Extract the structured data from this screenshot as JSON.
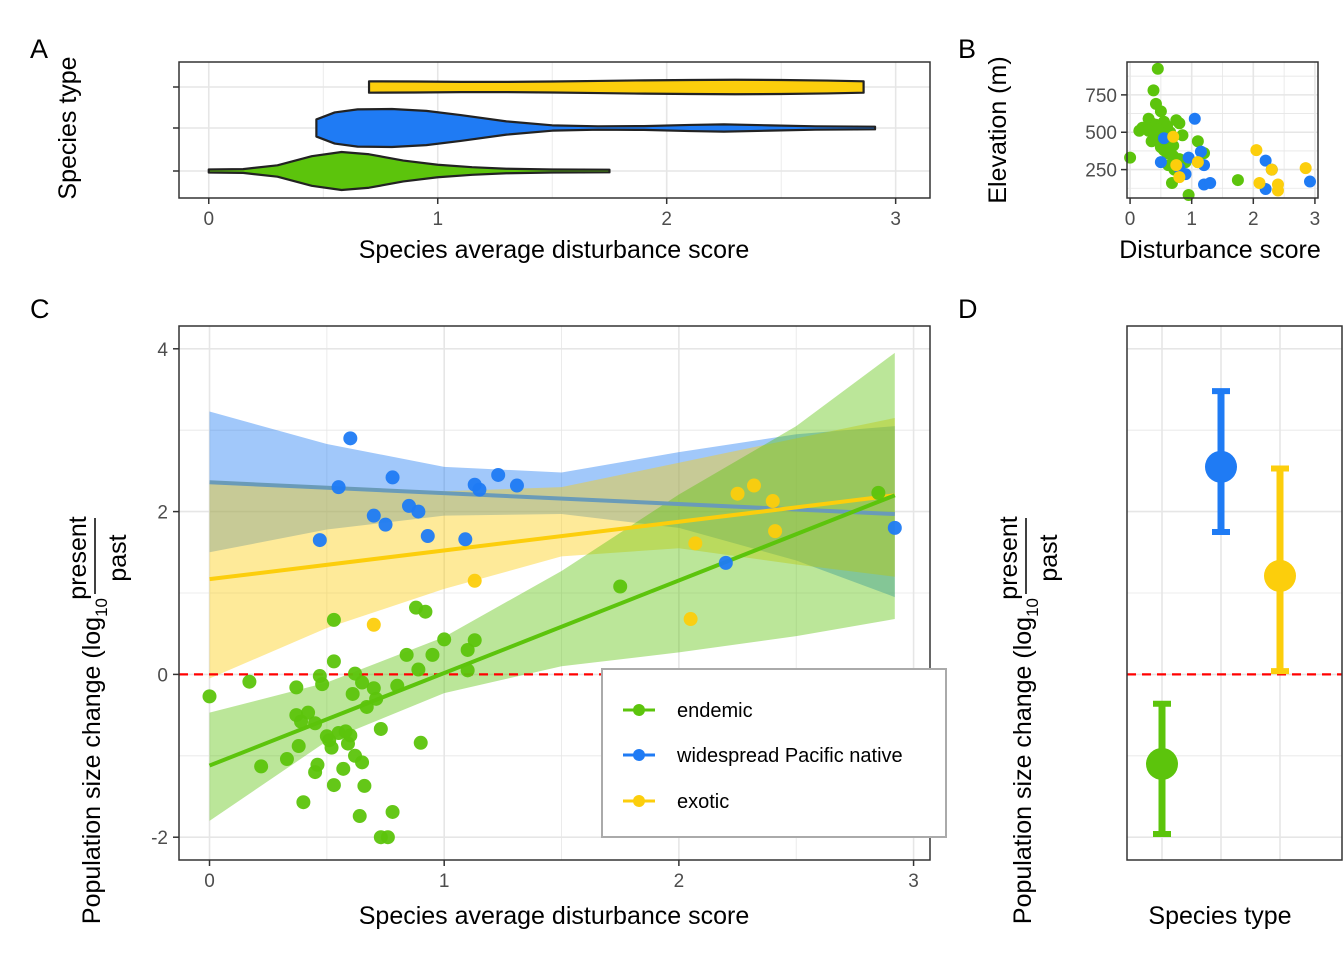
{
  "colors": {
    "endemic": "#5cc40c",
    "native": "#1f7bf4",
    "exotic": "#fcce0c",
    "reference_line": "#ff0000"
  },
  "panels": {
    "A": {
      "label": "A",
      "xlabel": "Species average disturbance score",
      "ylabel": "Species type",
      "xticks": [
        "0",
        "1",
        "2",
        "3"
      ]
    },
    "B": {
      "label": "B",
      "xlabel": "Disturbance score",
      "ylabel": "Elevation (m)",
      "xticks": [
        "0",
        "1",
        "2",
        "3"
      ],
      "yticks": [
        "250",
        "500",
        "750"
      ]
    },
    "C": {
      "label": "C",
      "xlabel": "Species average disturbance score",
      "ylabel_main": "Population size change (log",
      "ylabel_sub": "10",
      "ylabel_num": "present",
      "ylabel_den": "past",
      "xticks": [
        "0",
        "1",
        "2",
        "3"
      ],
      "yticks": [
        "-2",
        "0",
        "2",
        "4"
      ]
    },
    "D": {
      "label": "D",
      "xlabel": "Species type",
      "ylabel_main": "Population size change (log",
      "ylabel_sub": "10",
      "ylabel_num": "present",
      "ylabel_den": "past"
    }
  },
  "legend": [
    {
      "label": "endemic",
      "color": "#5cc40c"
    },
    {
      "label": "widespread Pacific native",
      "color": "#1f7bf4"
    },
    {
      "label": "exotic",
      "color": "#fcce0c"
    }
  ],
  "chart_data": [
    {
      "panel": "A",
      "type": "violin",
      "x_range": [
        -0.13,
        3.15
      ],
      "series": [
        {
          "name": "endemic",
          "color": "#5cc40c",
          "x_min": 0,
          "x_max": 1.75,
          "profile": [
            [
              0,
              0.08
            ],
            [
              0.15,
              0.1
            ],
            [
              0.3,
              0.3
            ],
            [
              0.45,
              0.78
            ],
            [
              0.58,
              1.0
            ],
            [
              0.7,
              0.88
            ],
            [
              0.85,
              0.55
            ],
            [
              1.0,
              0.33
            ],
            [
              1.15,
              0.2
            ],
            [
              1.3,
              0.12
            ],
            [
              1.5,
              0.08
            ],
            [
              1.75,
              0.07
            ]
          ]
        },
        {
          "name": "widespread Pacific native",
          "color": "#1f7bf4",
          "x_min": 0.47,
          "x_max": 2.91,
          "profile": [
            [
              0.47,
              0.45
            ],
            [
              0.55,
              0.82
            ],
            [
              0.65,
              0.98
            ],
            [
              0.8,
              1.0
            ],
            [
              0.95,
              0.9
            ],
            [
              1.1,
              0.68
            ],
            [
              1.3,
              0.35
            ],
            [
              1.5,
              0.14
            ],
            [
              1.7,
              0.09
            ],
            [
              1.9,
              0.1
            ],
            [
              2.1,
              0.16
            ],
            [
              2.25,
              0.19
            ],
            [
              2.45,
              0.14
            ],
            [
              2.65,
              0.09
            ],
            [
              2.91,
              0.07
            ]
          ]
        },
        {
          "name": "exotic",
          "color": "#fcce0c",
          "x_min": 0.7,
          "x_max": 2.86,
          "profile": [
            [
              0.7,
              0.3
            ],
            [
              0.9,
              0.29
            ],
            [
              1.1,
              0.27
            ],
            [
              1.3,
              0.27
            ],
            [
              1.5,
              0.29
            ],
            [
              1.7,
              0.32
            ],
            [
              1.9,
              0.35
            ],
            [
              2.1,
              0.37
            ],
            [
              2.3,
              0.38
            ],
            [
              2.5,
              0.37
            ],
            [
              2.7,
              0.34
            ],
            [
              2.86,
              0.3
            ]
          ]
        }
      ]
    },
    {
      "panel": "B",
      "type": "scatter",
      "x_range": [
        -0.05,
        3.05
      ],
      "y_range": [
        60,
        970
      ],
      "series": [
        {
          "name": "endemic",
          "color": "#5cc40c",
          "points": [
            [
              0.45,
              925
            ],
            [
              0.38,
              780
            ],
            [
              0.42,
              690
            ],
            [
              0.5,
              640
            ],
            [
              0.3,
              590
            ],
            [
              0.35,
              560
            ],
            [
              0.42,
              550
            ],
            [
              0.55,
              570
            ],
            [
              0.6,
              540
            ],
            [
              0.75,
              580
            ],
            [
              0.8,
              560
            ],
            [
              0.2,
              530
            ],
            [
              0.15,
              510
            ],
            [
              0.3,
              510
            ],
            [
              0.4,
              480
            ],
            [
              0.45,
              460
            ],
            [
              0.5,
              450
            ],
            [
              0.55,
              470
            ],
            [
              0.6,
              440
            ],
            [
              0.35,
              440
            ],
            [
              0.65,
              420
            ],
            [
              0.7,
              410
            ],
            [
              0.5,
              400
            ],
            [
              0.55,
              380
            ],
            [
              0.6,
              360
            ],
            [
              0.7,
              340
            ],
            [
              0.8,
              320
            ],
            [
              0.9,
              300
            ],
            [
              0.62,
              280
            ],
            [
              0.72,
              250
            ],
            [
              0.68,
              160
            ],
            [
              0.95,
              80
            ],
            [
              1.1,
              440
            ],
            [
              1.1,
              300
            ],
            [
              1.2,
              360
            ],
            [
              0.0,
              330
            ],
            [
              0.85,
              480
            ],
            [
              1.75,
              180
            ],
            [
              0.45,
              520
            ],
            [
              0.65,
              500
            ]
          ]
        },
        {
          "name": "widespread Pacific native",
          "color": "#1f7bf4",
          "points": [
            [
              1.05,
              590
            ],
            [
              1.15,
              370
            ],
            [
              0.95,
              330
            ],
            [
              0.8,
              260
            ],
            [
              1.2,
              280
            ],
            [
              0.9,
              220
            ],
            [
              0.5,
              300
            ],
            [
              2.2,
              310
            ],
            [
              2.3,
              250
            ],
            [
              2.2,
              120
            ],
            [
              1.2,
              150
            ],
            [
              1.3,
              160
            ],
            [
              2.92,
              170
            ],
            [
              0.55,
              460
            ]
          ]
        },
        {
          "name": "exotic",
          "color": "#fcce0c",
          "points": [
            [
              2.05,
              380
            ],
            [
              1.1,
              300
            ],
            [
              0.75,
              280
            ],
            [
              0.8,
              200
            ],
            [
              2.3,
              250
            ],
            [
              2.4,
              150
            ],
            [
              2.4,
              110
            ],
            [
              2.85,
              260
            ],
            [
              2.1,
              160
            ],
            [
              0.7,
              470
            ]
          ]
        }
      ]
    },
    {
      "panel": "C",
      "type": "scatter",
      "x_range": [
        -0.13,
        3.07
      ],
      "y_range": [
        -2.28,
        4.28
      ],
      "reference_line_y": 0,
      "series": [
        {
          "name": "endemic",
          "color": "#5cc40c",
          "points": [
            [
              0,
              -0.27
            ],
            [
              0.17,
              -0.09
            ],
            [
              0.22,
              -1.13
            ],
            [
              0.33,
              -1.04
            ],
            [
              0.37,
              -0.16
            ],
            [
              0.37,
              -0.5
            ],
            [
              0.38,
              -0.88
            ],
            [
              0.39,
              -0.58
            ],
            [
              0.4,
              -1.57
            ],
            [
              0.42,
              -0.47
            ],
            [
              0.45,
              -0.6
            ],
            [
              0.45,
              -1.2
            ],
            [
              0.46,
              -1.11
            ],
            [
              0.47,
              -0.02
            ],
            [
              0.48,
              -0.12
            ],
            [
              0.5,
              -0.76
            ],
            [
              0.51,
              -0.81
            ],
            [
              0.52,
              -0.9
            ],
            [
              0.53,
              0.16
            ],
            [
              0.53,
              -1.36
            ],
            [
              0.55,
              -0.72
            ],
            [
              0.57,
              -1.16
            ],
            [
              0.58,
              -0.7
            ],
            [
              0.59,
              -0.85
            ],
            [
              0.6,
              -0.75
            ],
            [
              0.61,
              -0.24
            ],
            [
              0.62,
              0.01
            ],
            [
              0.62,
              -1.0
            ],
            [
              0.64,
              -1.74
            ],
            [
              0.65,
              -1.08
            ],
            [
              0.65,
              -0.1
            ],
            [
              0.66,
              -1.37
            ],
            [
              0.67,
              -0.4
            ],
            [
              0.7,
              -0.17
            ],
            [
              0.71,
              -0.3
            ],
            [
              0.73,
              -0.67
            ],
            [
              0.73,
              -2.0
            ],
            [
              0.76,
              -2.0
            ],
            [
              0.78,
              -1.69
            ],
            [
              0.8,
              -0.14
            ],
            [
              0.84,
              0.24
            ],
            [
              0.89,
              0.06
            ],
            [
              0.9,
              -0.84
            ],
            [
              0.95,
              0.24
            ],
            [
              1.0,
              0.43
            ],
            [
              1.1,
              0.3
            ],
            [
              1.1,
              0.05
            ],
            [
              1.13,
              0.42
            ],
            [
              0.53,
              0.67
            ],
            [
              0.88,
              0.82
            ],
            [
              0.92,
              0.77
            ],
            [
              1.75,
              1.08
            ],
            [
              2.85,
              2.23
            ]
          ]
        },
        {
          "name": "widespread Pacific native",
          "color": "#1f7bf4",
          "points": [
            [
              0.6,
              2.9
            ],
            [
              0.55,
              2.3
            ],
            [
              0.47,
              1.65
            ],
            [
              0.7,
              1.95
            ],
            [
              0.75,
              1.84
            ],
            [
              0.85,
              2.07
            ],
            [
              0.89,
              2.0
            ],
            [
              0.93,
              1.7
            ],
            [
              1.09,
              1.66
            ],
            [
              1.13,
              2.33
            ],
            [
              1.15,
              2.27
            ],
            [
              1.23,
              2.45
            ],
            [
              1.31,
              2.32
            ],
            [
              0.78,
              2.42
            ],
            [
              2.2,
              1.37
            ],
            [
              2.92,
              1.8
            ]
          ]
        },
        {
          "name": "exotic",
          "color": "#fcce0c",
          "points": [
            [
              0.7,
              0.61
            ],
            [
              1.13,
              1.15
            ],
            [
              2.05,
              0.68
            ],
            [
              2.07,
              1.61
            ],
            [
              2.25,
              2.22
            ],
            [
              2.32,
              2.32
            ],
            [
              2.4,
              2.13
            ],
            [
              2.41,
              1.76
            ]
          ]
        }
      ],
      "fits": [
        {
          "name": "endemic",
          "color": "#5cc40c",
          "x": [
            0,
            2.92
          ],
          "y": [
            -1.12,
            2.2
          ],
          "ci": [
            [
              0,
              -1.8,
              -0.47
            ],
            [
              0.5,
              -0.82,
              -0.1
            ],
            [
              1.0,
              -0.23,
              0.46
            ],
            [
              1.5,
              0.1,
              1.27
            ],
            [
              2.0,
              0.27,
              2.21
            ],
            [
              2.5,
              0.47,
              3.05
            ],
            [
              2.92,
              0.68,
              3.95
            ]
          ]
        },
        {
          "name": "widespread Pacific native",
          "color": "#1f7bf4",
          "x": [
            0,
            2.92
          ],
          "y": [
            2.36,
            1.97
          ],
          "ci": [
            [
              0,
              1.5,
              3.23
            ],
            [
              0.5,
              1.78,
              2.83
            ],
            [
              1.0,
              1.95,
              2.55
            ],
            [
              1.5,
              1.97,
              2.48
            ],
            [
              2.0,
              1.8,
              2.73
            ],
            [
              2.5,
              1.4,
              2.95
            ],
            [
              2.92,
              0.95,
              3.05
            ]
          ]
        },
        {
          "name": "exotic",
          "color": "#fcce0c",
          "x": [
            0,
            2.92
          ],
          "y": [
            1.17,
            2.2
          ],
          "ci": [
            [
              0,
              -0.05,
              2.35
            ],
            [
              0.5,
              0.57,
              2.28
            ],
            [
              1.0,
              1.05,
              2.25
            ],
            [
              1.5,
              1.45,
              2.3
            ],
            [
              2.0,
              1.55,
              2.6
            ],
            [
              2.5,
              1.35,
              2.9
            ],
            [
              2.92,
              1.2,
              3.15
            ]
          ]
        }
      ]
    },
    {
      "panel": "D",
      "type": "pointrange",
      "y_range": [
        -2.28,
        4.28
      ],
      "reference_line_y": 0,
      "categories": [
        "endemic",
        "widespread Pacific native",
        "exotic"
      ],
      "series": [
        {
          "name": "endemic",
          "color": "#5cc40c",
          "mean": -1.1,
          "low": -1.96,
          "high": -0.36
        },
        {
          "name": "widespread Pacific native",
          "color": "#1f7bf4",
          "mean": 2.55,
          "low": 1.75,
          "high": 3.48
        },
        {
          "name": "exotic",
          "color": "#fcce0c",
          "mean": 1.21,
          "low": 0.04,
          "high": 2.53
        }
      ]
    }
  ]
}
